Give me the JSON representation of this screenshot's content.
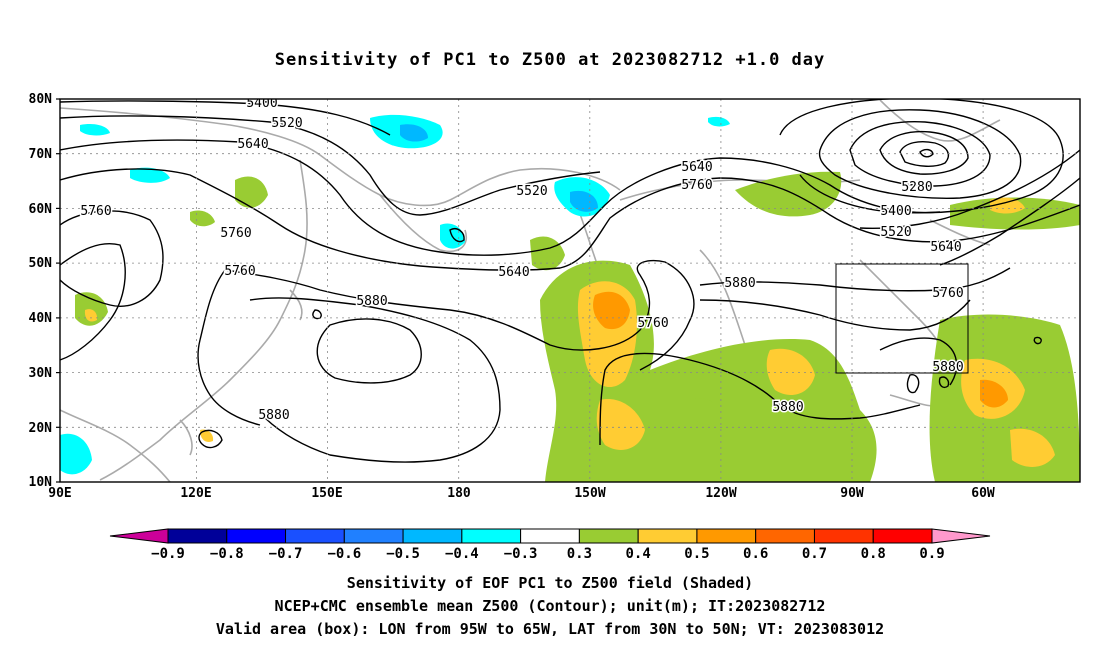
{
  "title": "Sensitivity of PC1 to Z500 at 2023082712 +1.0 day",
  "lat_labels": [
    "80N",
    "70N",
    "60N",
    "50N",
    "40N",
    "30N",
    "20N",
    "10N"
  ],
  "lon_labels": [
    "90E",
    "120E",
    "150E",
    "180",
    "150W",
    "120W",
    "90W",
    "60W"
  ],
  "contour_labels": [
    {
      "text": "5400"
    },
    {
      "text": "5520"
    },
    {
      "text": "5640"
    },
    {
      "text": "5760"
    },
    {
      "text": "5760"
    },
    {
      "text": "5760"
    },
    {
      "text": "5880"
    },
    {
      "text": "5880"
    },
    {
      "text": "5520"
    },
    {
      "text": "5640"
    },
    {
      "text": "5640"
    },
    {
      "text": "5760"
    },
    {
      "text": "5760"
    },
    {
      "text": "5880"
    },
    {
      "text": "5880"
    },
    {
      "text": "5280"
    },
    {
      "text": "5400"
    },
    {
      "text": "5520"
    },
    {
      "text": "5640"
    },
    {
      "text": "5760"
    },
    {
      "text": "5880"
    }
  ],
  "colorbar": {
    "labels": [
      "−0.9",
      "−0.8",
      "−0.7",
      "−0.6",
      "−0.5",
      "−0.4",
      "−0.3",
      "0.3",
      "0.4",
      "0.5",
      "0.6",
      "0.7",
      "0.8",
      "0.9"
    ],
    "colors": [
      "#000099",
      "#0000ff",
      "#1a50ff",
      "#2080ff",
      "#00b8ff",
      "#00ffff",
      "#ffffff",
      "#99cc33",
      "#ffcc33",
      "#ff9900",
      "#ff6600",
      "#ff3300",
      "#ff0000"
    ],
    "left_triangle_color": "#cc0099",
    "right_triangle_color": "#ff99cc"
  },
  "caption": {
    "line1": "Sensitivity of EOF PC1 to Z500 field (Shaded)",
    "line2": "NCEP+CMC ensemble mean Z500 (Contour); unit(m); IT:2023082712",
    "line3": "Valid area (box): LON from 95W to 65W, LAT from 30N to 50N; VT: 2023083012"
  }
}
